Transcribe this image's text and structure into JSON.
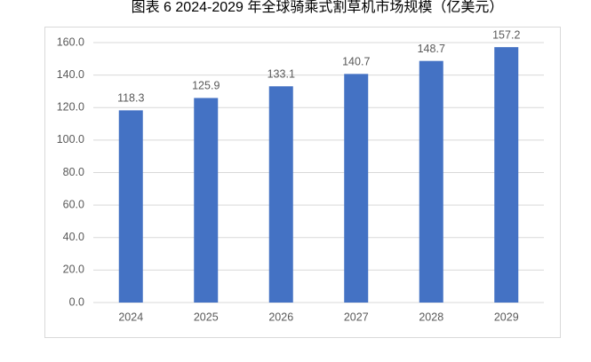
{
  "chart_data": {
    "type": "bar",
    "title": "图表 6 2024-2029 年全球骑乘式割草机市场规模（亿美元）",
    "categories": [
      "2024",
      "2025",
      "2026",
      "2027",
      "2028",
      "2029"
    ],
    "values": [
      118.3,
      125.9,
      133.1,
      140.7,
      148.7,
      157.2
    ],
    "color": "#4472c4",
    "ylim": [
      0,
      160
    ],
    "yticks": [
      {
        "value": 0,
        "label": "0.0"
      },
      {
        "value": 20,
        "label": "20.0"
      },
      {
        "value": 40,
        "label": "40.0"
      },
      {
        "value": 60,
        "label": "60.0"
      },
      {
        "value": 80,
        "label": "80.0"
      },
      {
        "value": 100,
        "label": "100.0"
      },
      {
        "value": 120,
        "label": "120.0"
      },
      {
        "value": 140,
        "label": "140.0"
      },
      {
        "value": 160,
        "label": "160.0"
      }
    ],
    "grid": true
  }
}
